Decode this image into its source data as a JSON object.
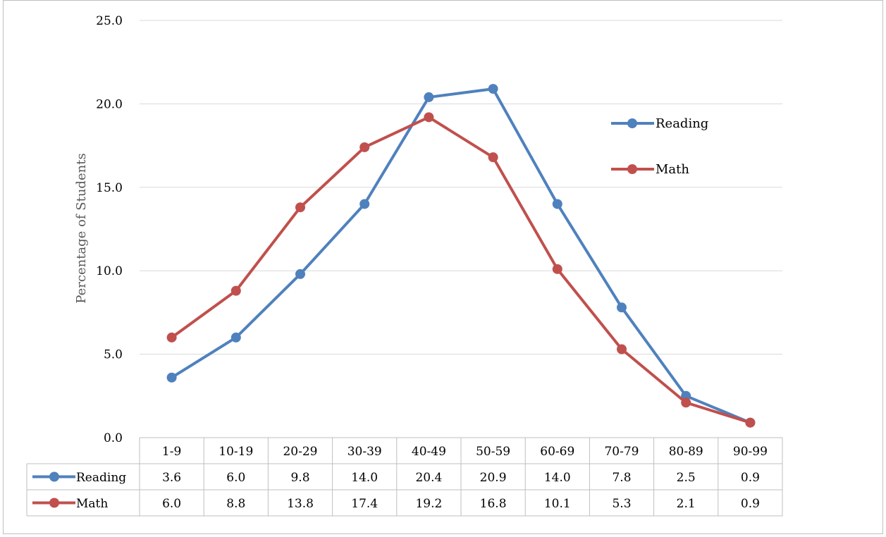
{
  "chart_data": {
    "type": "line",
    "title": "",
    "xlabel": "",
    "ylabel": "Percentage of Students",
    "ylim": [
      0,
      25
    ],
    "yticks": [
      "0.0",
      "5.0",
      "10.0",
      "15.0",
      "20.0",
      "25.0"
    ],
    "ytick_values": [
      0,
      5,
      10,
      15,
      20,
      25
    ],
    "grid": "horizontal",
    "legend_position": "right",
    "data_table": true,
    "categories": [
      "1-9",
      "10-19",
      "20-29",
      "30-39",
      "40-49",
      "50-59",
      "60-69",
      "70-79",
      "80-89",
      "90-99"
    ],
    "series": [
      {
        "name": "Reading",
        "color": "#4f81bd",
        "values": [
          3.6,
          6.0,
          9.8,
          14.0,
          20.4,
          20.9,
          14.0,
          7.8,
          2.5,
          0.9
        ],
        "labels": [
          "3.6",
          "6.0",
          "9.8",
          "14.0",
          "20.4",
          "20.9",
          "14.0",
          "7.8",
          "2.5",
          "0.9"
        ]
      },
      {
        "name": "Math",
        "color": "#c0504d",
        "values": [
          6.0,
          8.8,
          13.8,
          17.4,
          19.2,
          16.8,
          10.1,
          5.3,
          2.1,
          0.9
        ],
        "labels": [
          "6.0",
          "8.8",
          "13.8",
          "17.4",
          "19.2",
          "16.8",
          "10.1",
          "5.3",
          "2.1",
          "0.9"
        ]
      }
    ]
  }
}
